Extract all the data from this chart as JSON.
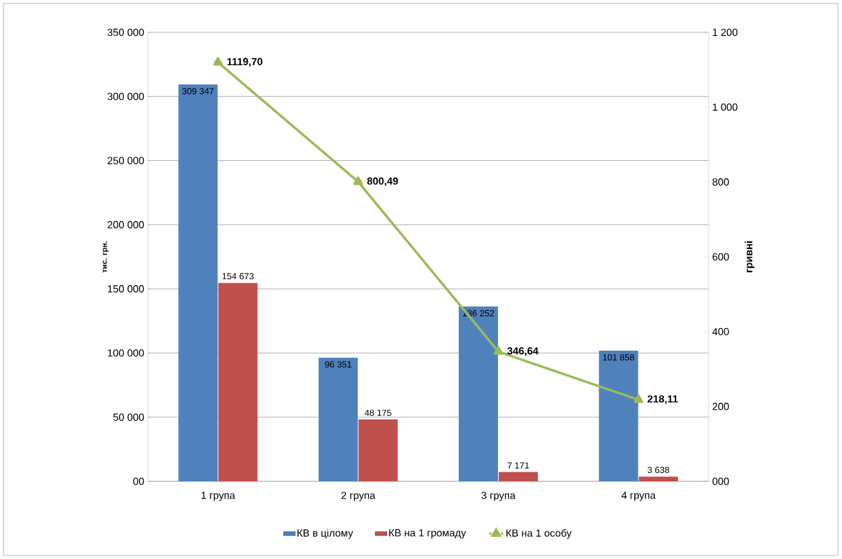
{
  "chart_data": {
    "type": "bar",
    "categories": [
      "1 група",
      "2 група",
      "3 група",
      "4 група"
    ],
    "ylabel": "тис. грн.",
    "y2label": "гривні",
    "ylim": [
      0,
      350000
    ],
    "yticks": [
      {
        "value": 0,
        "label": "00"
      },
      {
        "value": 50000,
        "label": "50 000"
      },
      {
        "value": 100000,
        "label": "100 000"
      },
      {
        "value": 150000,
        "label": "150 000"
      },
      {
        "value": 200000,
        "label": "200 000"
      },
      {
        "value": 250000,
        "label": "250 000"
      },
      {
        "value": 300000,
        "label": "300 000"
      },
      {
        "value": 350000,
        "label": "350 000"
      }
    ],
    "y2lim": [
      0,
      1200
    ],
    "y2ticks": [
      {
        "value": 0,
        "label": "000"
      },
      {
        "value": 200,
        "label": "200"
      },
      {
        "value": 400,
        "label": "400"
      },
      {
        "value": 600,
        "label": "600"
      },
      {
        "value": 800,
        "label": "800"
      },
      {
        "value": 1000,
        "label": "1 000"
      },
      {
        "value": 1200,
        "label": "1 200"
      }
    ],
    "grid": "y",
    "legend": "bottom",
    "series": [
      {
        "name": "КВ в цілому",
        "color": "#4f81bd",
        "values": [
          309347,
          96351,
          136252,
          101858
        ],
        "value_labels": [
          "309 347",
          "96 351",
          "136 252",
          "101 858"
        ]
      },
      {
        "name": "КВ на 1 громаду",
        "color": "#c0504d",
        "values": [
          154673,
          48175,
          7171,
          3638
        ],
        "value_labels": [
          "154 673",
          "48 175",
          "7 171",
          "3 638"
        ]
      },
      {
        "name": "КВ на 1 особу",
        "type": "line",
        "axis": "y2",
        "marker": "triangle",
        "color": "#9bbb59",
        "values": [
          1119.7,
          800.49,
          346.64,
          218.11
        ],
        "value_labels": [
          "1119,70",
          "800,49",
          "346,64",
          "218,11"
        ]
      }
    ]
  }
}
